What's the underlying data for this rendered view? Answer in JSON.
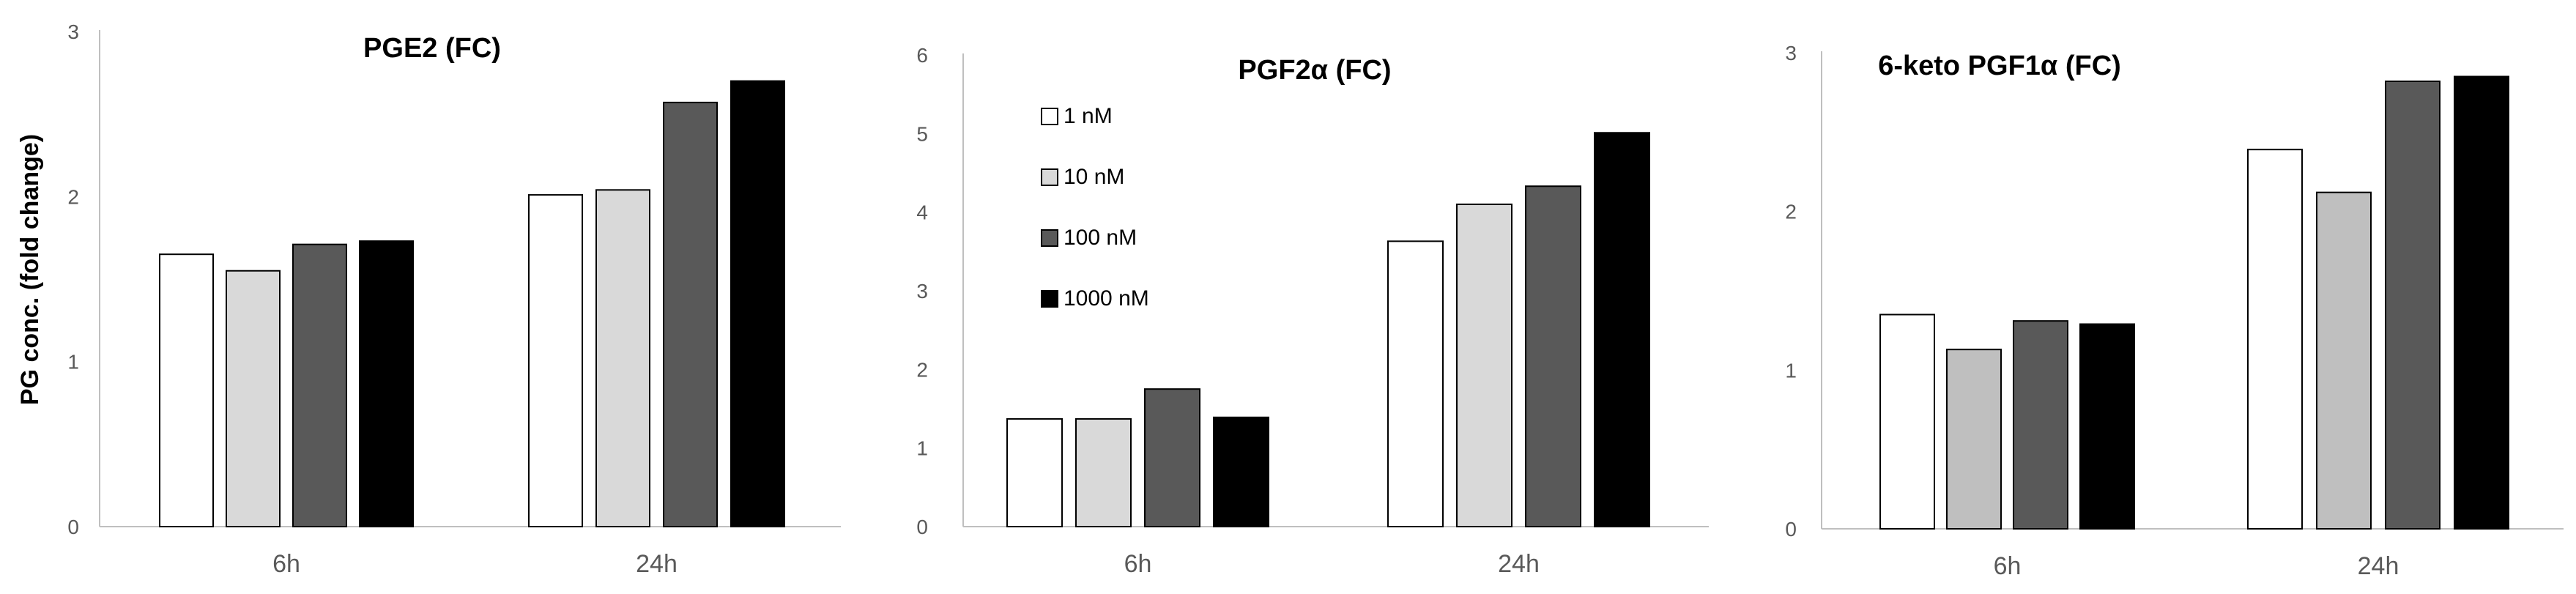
{
  "figure": {
    "ylabel": "PG conc. (fold change)"
  },
  "legend": [
    {
      "label": "1 nM",
      "color": "#ffffff"
    },
    {
      "label": "10 nM",
      "color": "#d9d9d9"
    },
    {
      "label": "100 nM",
      "color": "#595959"
    },
    {
      "label": "1000 nM",
      "color": "#000000"
    }
  ],
  "chart_data": [
    {
      "type": "bar",
      "title": "PGE2 (FC)",
      "categories": [
        "6h",
        "24h"
      ],
      "ylim": [
        0,
        3
      ],
      "yticks": [
        0,
        1,
        2,
        3
      ],
      "xlabel": "",
      "ylabel": "PG conc. (fold change)",
      "series": [
        {
          "name": "1 nM",
          "color": "#ffffff",
          "values": [
            1.65,
            2.01
          ]
        },
        {
          "name": "10 nM",
          "color": "#d9d9d9",
          "values": [
            1.55,
            2.04
          ]
        },
        {
          "name": "100 nM",
          "color": "#595959",
          "values": [
            1.71,
            2.57
          ]
        },
        {
          "name": "1000 nM",
          "color": "#000000",
          "values": [
            1.73,
            2.7
          ]
        }
      ]
    },
    {
      "type": "bar",
      "title": "PGF2α (FC)",
      "categories": [
        "6h",
        "24h"
      ],
      "ylim": [
        0,
        6
      ],
      "yticks": [
        0,
        1,
        2,
        3,
        4,
        5,
        6
      ],
      "xlabel": "",
      "ylabel": "",
      "legend_position": "top-left",
      "series": [
        {
          "name": "1 nM",
          "color": "#ffffff",
          "values": [
            1.37,
            3.63
          ]
        },
        {
          "name": "10 nM",
          "color": "#d9d9d9",
          "values": [
            1.37,
            4.1
          ]
        },
        {
          "name": "100 nM",
          "color": "#595959",
          "values": [
            1.75,
            4.33
          ]
        },
        {
          "name": "1000 nM",
          "color": "#000000",
          "values": [
            1.39,
            5.01
          ]
        }
      ]
    },
    {
      "type": "bar",
      "title": "6-keto PGF1α (FC)",
      "categories": [
        "6h",
        "24h"
      ],
      "ylim": [
        0,
        3
      ],
      "yticks": [
        0,
        1,
        2,
        3
      ],
      "xlabel": "",
      "ylabel": "",
      "series": [
        {
          "name": "1 nM",
          "color": "#ffffff",
          "values": [
            1.35,
            2.39
          ]
        },
        {
          "name": "10 nM",
          "color": "#bfbfbf",
          "values": [
            1.13,
            2.12
          ]
        },
        {
          "name": "100 nM",
          "color": "#595959",
          "values": [
            1.31,
            2.82
          ]
        },
        {
          "name": "1000 nM",
          "color": "#000000",
          "values": [
            1.29,
            2.85
          ]
        }
      ]
    }
  ]
}
